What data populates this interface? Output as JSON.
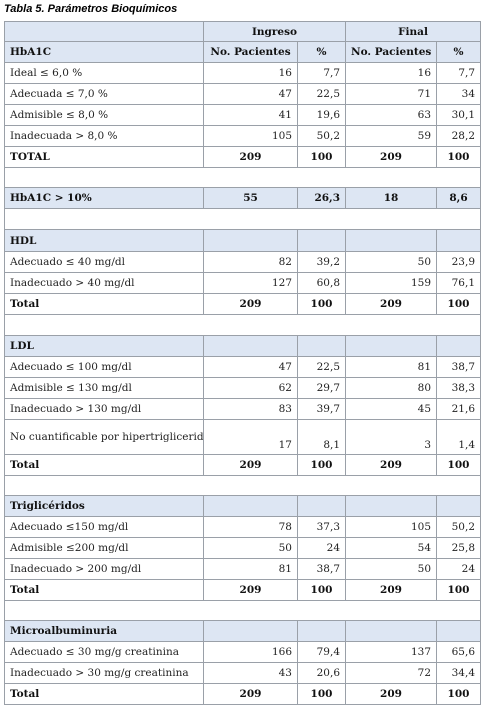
{
  "caption": "Tabla 5. Parámetros Bioquímicos",
  "header": {
    "ingreso": "Ingreso",
    "final": "Final",
    "hba1c": "HbA1C",
    "no_pacientes": "No. Pacientes",
    "pct": "%"
  },
  "hba1c_rows": [
    {
      "label": "Ideal ≤ 6,0 %",
      "ing_n": "16",
      "ing_p": "7,7",
      "fin_n": "16",
      "fin_p": "7,7"
    },
    {
      "label": "Adecuada ≤ 7,0 %",
      "ing_n": "47",
      "ing_p": "22,5",
      "fin_n": "71",
      "fin_p": "34"
    },
    {
      "label": "Admisible ≤ 8,0 %",
      "ing_n": "41",
      "ing_p": "19,6",
      "fin_n": "63",
      "fin_p": "30,1"
    },
    {
      "label": "Inadecuada > 8,0 %",
      "ing_n": "105",
      "ing_p": "50,2",
      "fin_n": "59",
      "fin_p": "28,2"
    }
  ],
  "hba1c_total": {
    "label": "TOTAL",
    "ing_n": "209",
    "ing_p": "100",
    "fin_n": "209",
    "fin_p": "100"
  },
  "hba1c_10": {
    "label": "HbA1C > 10%",
    "ing_n": "55",
    "ing_p": "26,3",
    "fin_n": "18",
    "fin_p": "8,6"
  },
  "hdl": {
    "title": "HDL",
    "rows": [
      {
        "label": "Adecuado ≤ 40 mg/dl",
        "ing_n": "82",
        "ing_p": "39,2",
        "fin_n": "50",
        "fin_p": "23,9"
      },
      {
        "label": "Inadecuado > 40 mg/dl",
        "ing_n": "127",
        "ing_p": "60,8",
        "fin_n": "159",
        "fin_p": "76,1"
      }
    ],
    "total": {
      "label": "Total",
      "ing_n": "209",
      "ing_p": "100",
      "fin_n": "209",
      "fin_p": "100"
    }
  },
  "ldl": {
    "title": "LDL",
    "rows": [
      {
        "label": "Adecuado ≤ 100 mg/dl",
        "ing_n": "47",
        "ing_p": "22,5",
        "fin_n": "81",
        "fin_p": "38,7"
      },
      {
        "label": "Admisible ≤ 130 mg/dl",
        "ing_n": "62",
        "ing_p": "29,7",
        "fin_n": "80",
        "fin_p": "38,3"
      },
      {
        "label": "Inadecuado > 130 mg/dl",
        "ing_n": "83",
        "ing_p": "39,7",
        "fin_n": "45",
        "fin_p": "21,6"
      },
      {
        "label": "No cuantificable por hipertrigliceridemia",
        "ing_n": "17",
        "ing_p": "8,1",
        "fin_n": "3",
        "fin_p": "1,4"
      }
    ],
    "total": {
      "label": "Total",
      "ing_n": "209",
      "ing_p": "100",
      "fin_n": "209",
      "fin_p": "100"
    }
  },
  "tg": {
    "title": "Triglicéridos",
    "rows": [
      {
        "label": "Adecuado ≤150 mg/dl",
        "ing_n": "78",
        "ing_p": "37,3",
        "fin_n": "105",
        "fin_p": "50,2"
      },
      {
        "label": "Admisible ≤200 mg/dl",
        "ing_n": "50",
        "ing_p": "24",
        "fin_n": "54",
        "fin_p": "25,8"
      },
      {
        "label": "Inadecuado > 200 mg/dl",
        "ing_n": "81",
        "ing_p": "38,7",
        "fin_n": "50",
        "fin_p": "24"
      }
    ],
    "total": {
      "label": "Total",
      "ing_n": "209",
      "ing_p": "100",
      "fin_n": "209",
      "fin_p": "100"
    }
  },
  "micro": {
    "title": "Microalbuminuria",
    "rows": [
      {
        "label": "Adecuado ≤ 30 mg/g creatinina",
        "ing_n": "166",
        "ing_p": "79,4",
        "fin_n": "137",
        "fin_p": "65,6"
      },
      {
        "label": "Inadecuado > 30 mg/g creatinina",
        "ing_n": "43",
        "ing_p": "20,6",
        "fin_n": "72",
        "fin_p": "34,4"
      }
    ],
    "total": {
      "label": "Total",
      "ing_n": "209",
      "ing_p": "100",
      "fin_n": "209",
      "fin_p": "100"
    }
  }
}
